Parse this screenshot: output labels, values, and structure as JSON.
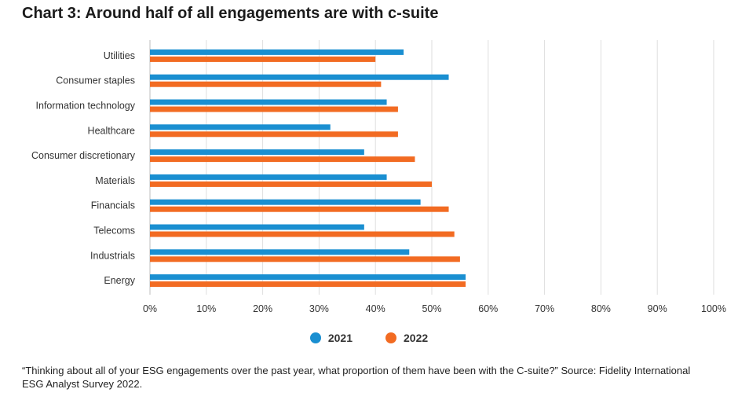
{
  "chart_data": {
    "type": "bar",
    "orientation": "horizontal",
    "title": "Chart 3: Around half of all engagements are with c-suite",
    "categories": [
      "Utilities",
      "Consumer staples",
      "Information technology",
      "Healthcare",
      "Consumer discretionary",
      "Materials",
      "Financials",
      "Telecoms",
      "Industrials",
      "Energy"
    ],
    "series": [
      {
        "name": "2021",
        "color": "#1a8fd1",
        "values": [
          45,
          53,
          42,
          32,
          38,
          42,
          48,
          38,
          46,
          56
        ]
      },
      {
        "name": "2022",
        "color": "#f26b22",
        "values": [
          40,
          41,
          44,
          44,
          47,
          50,
          53,
          54,
          55,
          56
        ]
      }
    ],
    "x_ticks": [
      "0%",
      "10%",
      "20%",
      "30%",
      "40%",
      "50%",
      "60%",
      "70%",
      "80%",
      "90%",
      "100%"
    ],
    "xlim": [
      0,
      100
    ],
    "xlabel": "",
    "ylabel": "",
    "grid": true,
    "legend_position": "bottom-center"
  },
  "legend": {
    "items": [
      {
        "label": "2021",
        "color": "#1a8fd1"
      },
      {
        "label": "2022",
        "color": "#f26b22"
      }
    ]
  },
  "footnote": "“Thinking about all of your ESG engagements over the past year, what proportion of them have been with the C-suite?” Source: Fidelity International ESG Analyst Survey 2022."
}
